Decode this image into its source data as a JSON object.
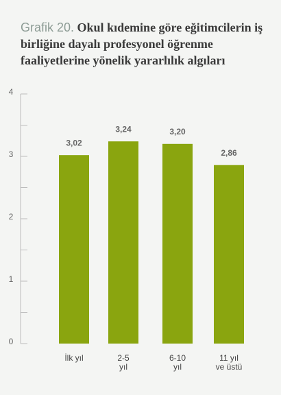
{
  "chart_data": {
    "type": "bar",
    "label": "Grafik 20.",
    "title": "Okul kıdemine göre eğitimcilerin iş birliğine dayalı profesyonel öğrenme faaliyetlerine yönelik yararlılık algıları",
    "categories": [
      "İlk yıl",
      "2-5\nyıl",
      "6-10\nyıl",
      "11 yıl\nve üstü"
    ],
    "values": [
      3.02,
      3.24,
      3.2,
      2.86
    ],
    "value_labels": [
      "3,02",
      "3,24",
      "3,20",
      "2,86"
    ],
    "color": "#8aa50f",
    "ylim": [
      0,
      4
    ],
    "yticks": [
      0,
      1,
      2,
      3,
      4
    ],
    "minor_yticks": [
      0.5,
      1.5,
      2.5,
      3.5
    ]
  }
}
